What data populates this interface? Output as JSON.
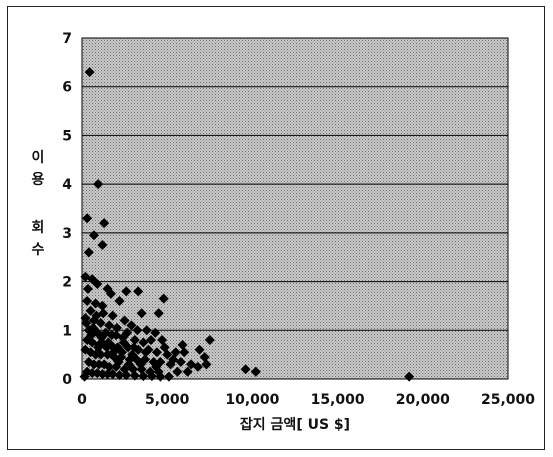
{
  "chart_data": {
    "type": "scatter",
    "xlabel": "잡지 금액[ US $]",
    "ylabel": "이용 회수",
    "xlim": [
      0,
      25000
    ],
    "ylim": [
      0,
      7
    ],
    "x_ticks": [
      0,
      5000,
      10000,
      15000,
      20000,
      25000
    ],
    "x_tick_labels": [
      "0",
      "5,000",
      "10,000",
      "15,000",
      "20,000",
      "25,000"
    ],
    "y_ticks": [
      0,
      1,
      2,
      3,
      4,
      5,
      6,
      7
    ],
    "y_tick_labels": [
      "0",
      "1",
      "2",
      "3",
      "4",
      "5",
      "6",
      "7"
    ],
    "grid": "horizontal",
    "plot_background": "stippled gray",
    "marker": "diamond",
    "marker_color": "#000000",
    "series": [
      {
        "points": [
          [
            450,
            6.3
          ],
          [
            950,
            4.0
          ],
          [
            300,
            3.3
          ],
          [
            700,
            2.95
          ],
          [
            1200,
            2.75
          ],
          [
            400,
            2.6
          ],
          [
            1300,
            3.2
          ],
          [
            200,
            2.1
          ],
          [
            600,
            2.05
          ],
          [
            900,
            1.95
          ],
          [
            350,
            1.85
          ],
          [
            1500,
            1.85
          ],
          [
            1700,
            1.75
          ],
          [
            2600,
            1.8
          ],
          [
            3300,
            1.8
          ],
          [
            4800,
            1.65
          ],
          [
            300,
            1.6
          ],
          [
            800,
            1.55
          ],
          [
            1200,
            1.5
          ],
          [
            2200,
            1.6
          ],
          [
            3500,
            1.35
          ],
          [
            4500,
            1.35
          ],
          [
            500,
            1.4
          ],
          [
            1800,
            1.3
          ],
          [
            2500,
            1.2
          ],
          [
            200,
            1.25
          ],
          [
            700,
            1.2
          ],
          [
            1100,
            1.15
          ],
          [
            1600,
            1.1
          ],
          [
            2900,
            1.1
          ],
          [
            3800,
            1.0
          ],
          [
            4300,
            0.95
          ],
          [
            400,
            1.0
          ],
          [
            900,
            0.95
          ],
          [
            1400,
            0.95
          ],
          [
            2000,
            0.9
          ],
          [
            2400,
            0.85
          ],
          [
            3100,
            0.8
          ],
          [
            3600,
            0.75
          ],
          [
            4700,
            0.8
          ],
          [
            7500,
            0.8
          ],
          [
            300,
            0.8
          ],
          [
            600,
            0.75
          ],
          [
            1000,
            0.7
          ],
          [
            1300,
            0.7
          ],
          [
            1700,
            0.7
          ],
          [
            2100,
            0.65
          ],
          [
            2700,
            0.65
          ],
          [
            3300,
            0.6
          ],
          [
            3900,
            0.6
          ],
          [
            4400,
            0.55
          ],
          [
            5000,
            0.5
          ],
          [
            5500,
            0.55
          ],
          [
            6000,
            0.55
          ],
          [
            6900,
            0.6
          ],
          [
            7200,
            0.45
          ],
          [
            7300,
            0.3
          ],
          [
            200,
            0.6
          ],
          [
            500,
            0.55
          ],
          [
            800,
            0.5
          ],
          [
            1100,
            0.5
          ],
          [
            1500,
            0.5
          ],
          [
            1900,
            0.45
          ],
          [
            2300,
            0.45
          ],
          [
            2800,
            0.4
          ],
          [
            3200,
            0.4
          ],
          [
            3700,
            0.4
          ],
          [
            4200,
            0.35
          ],
          [
            4600,
            0.35
          ],
          [
            5200,
            0.3
          ],
          [
            5800,
            0.35
          ],
          [
            6400,
            0.3
          ],
          [
            6800,
            0.25
          ],
          [
            400,
            0.35
          ],
          [
            700,
            0.3
          ],
          [
            1000,
            0.3
          ],
          [
            1300,
            0.3
          ],
          [
            1600,
            0.25
          ],
          [
            2000,
            0.25
          ],
          [
            2500,
            0.2
          ],
          [
            3000,
            0.2
          ],
          [
            3500,
            0.2
          ],
          [
            4000,
            0.15
          ],
          [
            4500,
            0.15
          ],
          [
            5600,
            0.15
          ],
          [
            6200,
            0.15
          ],
          [
            300,
            0.15
          ],
          [
            600,
            0.12
          ],
          [
            900,
            0.12
          ],
          [
            1200,
            0.1
          ],
          [
            1500,
            0.1
          ],
          [
            1800,
            0.1
          ],
          [
            2200,
            0.08
          ],
          [
            2600,
            0.08
          ],
          [
            3100,
            0.07
          ],
          [
            3600,
            0.06
          ],
          [
            4100,
            0.06
          ],
          [
            4600,
            0.05
          ],
          [
            5100,
            0.05
          ],
          [
            150,
            0.05
          ],
          [
            9600,
            0.2
          ],
          [
            10200,
            0.15
          ],
          [
            19200,
            0.05
          ],
          [
            550,
            0.9
          ],
          [
            850,
            1.3
          ],
          [
            1150,
            0.85
          ],
          [
            1450,
            0.65
          ],
          [
            1750,
            0.9
          ],
          [
            2050,
            1.05
          ],
          [
            2350,
            0.55
          ],
          [
            2650,
            0.95
          ],
          [
            2950,
            0.5
          ],
          [
            3250,
            1.0
          ],
          [
            3450,
            0.3
          ],
          [
            3750,
            0.55
          ],
          [
            4050,
            0.8
          ],
          [
            4350,
            0.25
          ],
          [
            4850,
            0.65
          ],
          [
            5350,
            0.4
          ],
          [
            5900,
            0.7
          ],
          [
            250,
            1.15
          ],
          [
            650,
            1.05
          ],
          [
            950,
            0.65
          ],
          [
            1250,
            1.35
          ],
          [
            1550,
            0.75
          ],
          [
            1850,
            0.55
          ],
          [
            2150,
            0.35
          ],
          [
            2450,
            0.75
          ],
          [
            2750,
            0.3
          ],
          [
            3050,
            0.65
          ]
        ]
      }
    ]
  }
}
